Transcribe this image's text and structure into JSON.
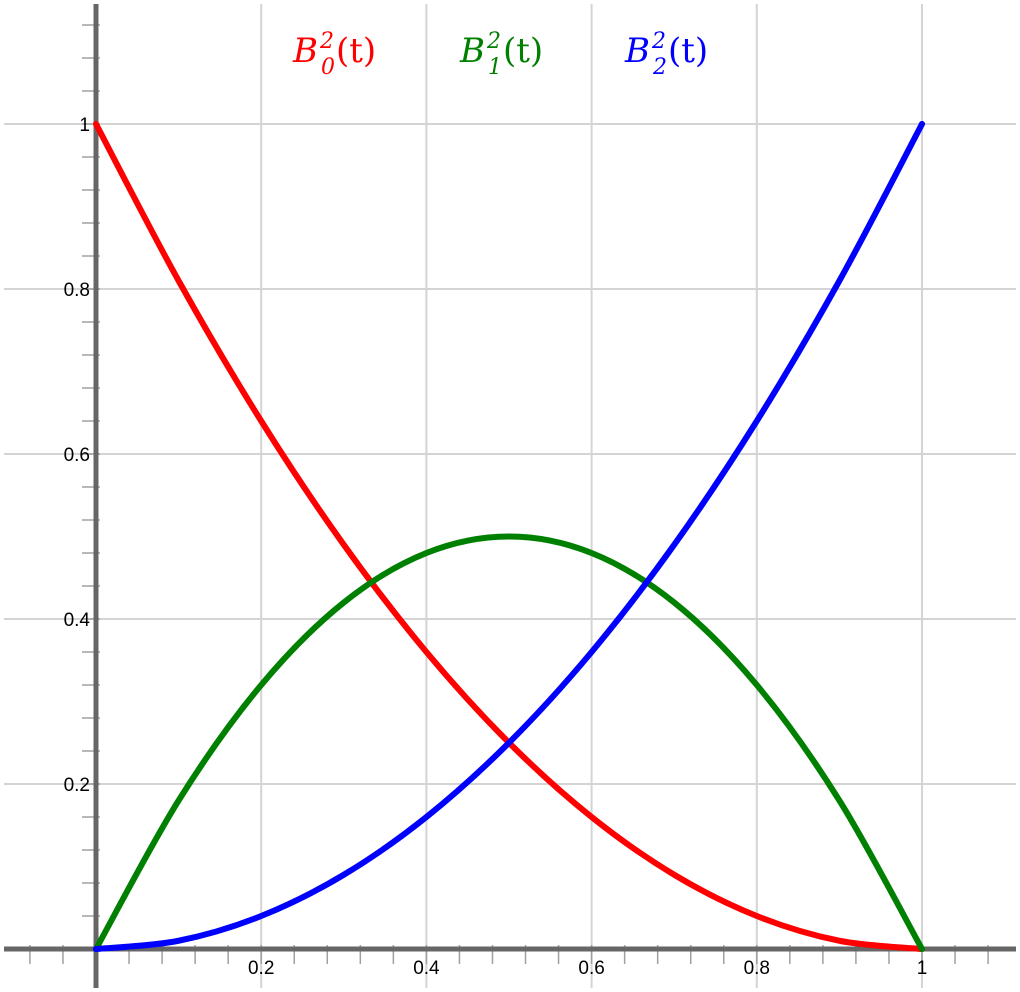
{
  "chart_data": {
    "type": "line",
    "title": "",
    "xlabel": "",
    "ylabel": "",
    "xlim": [
      -0.11,
      1.12
    ],
    "ylim": [
      -0.05,
      1.14
    ],
    "grid": true,
    "x_ticks": [
      0.2,
      0.4,
      0.6,
      0.8,
      1
    ],
    "x_tick_labels": [
      "0.2",
      "0.4",
      "0.6",
      "0.8",
      "1"
    ],
    "y_ticks": [
      0.2,
      0.4,
      0.6,
      0.8,
      1
    ],
    "y_tick_labels": [
      "0.2",
      "0.4",
      "0.6",
      "0.8",
      "1"
    ],
    "legend_placement": "top",
    "series": [
      {
        "name": "B",
        "sup": "2",
        "sub": "0",
        "arg": "(t)",
        "color": "#ff0000",
        "x": [
          0,
          0.1,
          0.2,
          0.3,
          0.4,
          0.5,
          0.6,
          0.7,
          0.8,
          0.9,
          1
        ],
        "y": [
          1,
          0.81,
          0.64,
          0.49,
          0.36,
          0.25,
          0.16,
          0.09,
          0.04,
          0.01,
          0
        ]
      },
      {
        "name": "B",
        "sup": "2",
        "sub": "1",
        "arg": "(t)",
        "color": "#008000",
        "x": [
          0,
          0.1,
          0.2,
          0.3,
          0.4,
          0.5,
          0.6,
          0.7,
          0.8,
          0.9,
          1
        ],
        "y": [
          0,
          0.18,
          0.32,
          0.42,
          0.48,
          0.5,
          0.48,
          0.42,
          0.32,
          0.18,
          0
        ]
      },
      {
        "name": "B",
        "sup": "2",
        "sub": "2",
        "arg": "(t)",
        "color": "#0000ff",
        "x": [
          0,
          0.1,
          0.2,
          0.3,
          0.4,
          0.5,
          0.6,
          0.7,
          0.8,
          0.9,
          1
        ],
        "y": [
          0,
          0.01,
          0.04,
          0.09,
          0.16,
          0.25,
          0.36,
          0.49,
          0.64,
          0.81,
          1
        ]
      }
    ]
  }
}
